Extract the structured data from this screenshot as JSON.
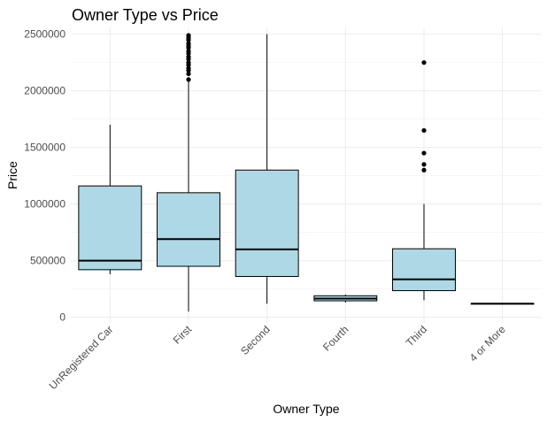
{
  "chart_data": {
    "type": "box",
    "title": "Owner Type vs Price",
    "xlabel": "Owner Type",
    "ylabel": "Price",
    "ylim": [
      -50000,
      2560000
    ],
    "yticks": [
      0,
      500000,
      1000000,
      1500000,
      2000000,
      2500000
    ],
    "ytick_labels": [
      "0",
      "500000",
      "1000000",
      "1500000",
      "2000000",
      "2500000"
    ],
    "grid": true,
    "colors": {
      "box_fill": "#add8e6",
      "box_stroke": "#000000",
      "grid": "#ebebeb"
    },
    "categories": [
      "UnRegistered Car",
      "First",
      "Second",
      "Fourth",
      "Third",
      "4 or More"
    ],
    "boxes": [
      {
        "category": "UnRegistered Car",
        "lower_whisker": 380000,
        "q1": 420000,
        "median": 500000,
        "q3": 1160000,
        "upper_whisker": 1700000,
        "outliers": []
      },
      {
        "category": "First",
        "lower_whisker": 50000,
        "q1": 450000,
        "median": 690000,
        "q3": 1100000,
        "upper_whisker": 2080000,
        "outliers": [
          2100000,
          2150000,
          2180000,
          2200000,
          2230000,
          2250000,
          2280000,
          2300000,
          2330000,
          2350000,
          2380000,
          2400000,
          2420000,
          2450000,
          2470000,
          2490000
        ]
      },
      {
        "category": "Second",
        "lower_whisker": 120000,
        "q1": 360000,
        "median": 600000,
        "q3": 1300000,
        "upper_whisker": 2500000,
        "outliers": []
      },
      {
        "category": "Fourth",
        "lower_whisker": 130000,
        "q1": 145000,
        "median": 165000,
        "q3": 190000,
        "upper_whisker": 200000,
        "outliers": []
      },
      {
        "category": "Third",
        "lower_whisker": 150000,
        "q1": 235000,
        "median": 335000,
        "q3": 605000,
        "upper_whisker": 1000000,
        "outliers": [
          1300000,
          1350000,
          1450000,
          1650000,
          2250000
        ]
      },
      {
        "category": "4 or More",
        "lower_whisker": 120000,
        "q1": 120000,
        "median": 120000,
        "q3": 120000,
        "upper_whisker": 120000,
        "outliers": []
      }
    ]
  }
}
